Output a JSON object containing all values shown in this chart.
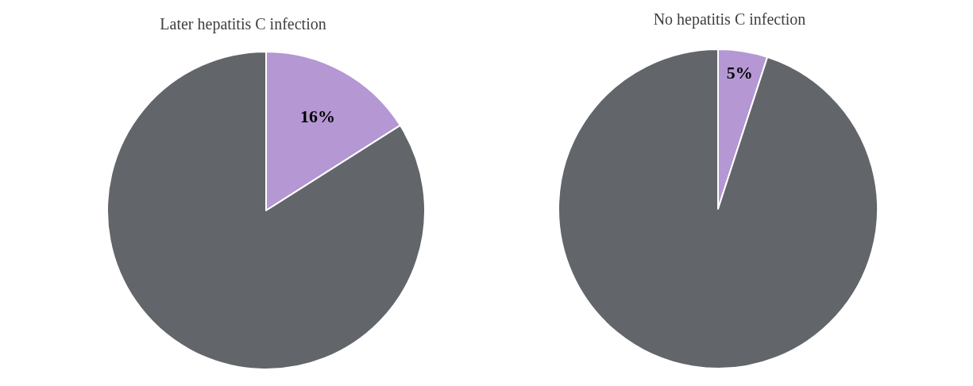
{
  "chart_data": [
    {
      "type": "pie",
      "title": "Later hepatitis C infection",
      "categories": [
        null,
        null
      ],
      "values": [
        16,
        84
      ],
      "colors": [
        "#b497d3",
        "#626569"
      ],
      "value_labels": [
        "16%",
        null
      ]
    },
    {
      "type": "pie",
      "title": "No hepatitis C infection",
      "categories": [
        null,
        null
      ],
      "values": [
        5,
        95
      ],
      "colors": [
        "#b497d3",
        "#626569"
      ],
      "value_labels": [
        "5%",
        null
      ]
    }
  ]
}
